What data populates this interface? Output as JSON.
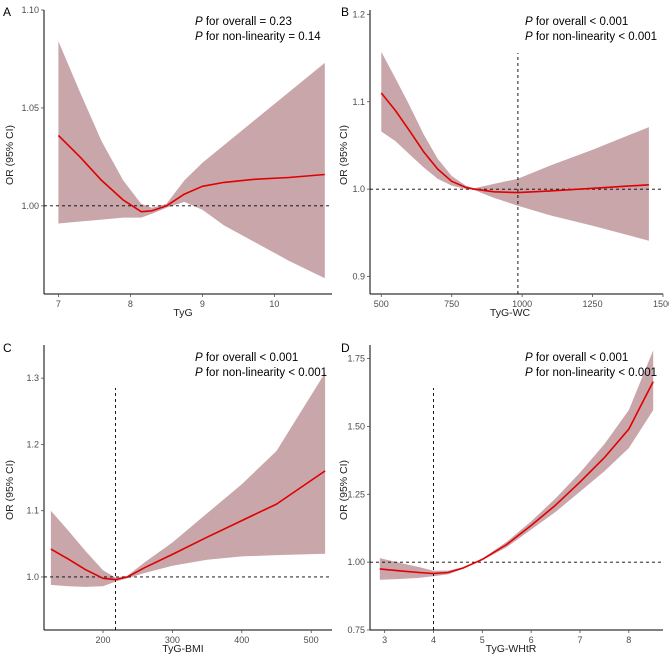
{
  "figure": {
    "ylabel": "OR (95% CI)"
  },
  "chart_data": [
    {
      "panel": "A",
      "type": "line",
      "xlabel": "TyG",
      "ylabel": "OR (95% CI)",
      "xlim": [
        6.8,
        10.8
      ],
      "ylim": [
        0.955,
        1.1
      ],
      "xticks": [
        7,
        8,
        9,
        10
      ],
      "xtick_labels": [
        "7",
        "8",
        "9",
        "10"
      ],
      "yticks": [
        1.0,
        1.05,
        1.1
      ],
      "ytick_labels": [
        "1.00",
        "1.05",
        "1.10"
      ],
      "reference_y": 1.0,
      "reference_x": null,
      "annotation": [
        {
          "p": "P",
          "text": " for overall = 0.23"
        },
        {
          "p": "P",
          "text": " for non-linearity = 0.14"
        }
      ],
      "series": [
        {
          "name": "OR",
          "x": [
            7.0,
            7.3,
            7.6,
            7.9,
            8.15,
            8.3,
            8.5,
            8.75,
            9.0,
            9.3,
            9.7,
            10.2,
            10.7
          ],
          "y": [
            1.036,
            1.025,
            1.013,
            1.003,
            0.997,
            0.9975,
            1.0,
            1.006,
            1.01,
            1.012,
            1.0135,
            1.0145,
            1.016
          ],
          "lower": [
            0.991,
            0.992,
            0.993,
            0.994,
            0.994,
            0.996,
            0.999,
            1.002,
            0.998,
            0.99,
            0.982,
            0.972,
            0.963
          ],
          "upper": [
            1.084,
            1.058,
            1.033,
            1.013,
            1.001,
            0.999,
            1.001,
            1.013,
            1.022,
            1.031,
            1.043,
            1.058,
            1.073
          ]
        }
      ]
    },
    {
      "panel": "B",
      "type": "line",
      "xlabel": "TyG-WC",
      "ylabel": "OR (95% CI)",
      "xlim": [
        460,
        1500
      ],
      "ylim": [
        0.88,
        1.205
      ],
      "xticks": [
        500,
        750,
        1000,
        1250,
        1500
      ],
      "xtick_labels": [
        "500",
        "750",
        "1000",
        "1250",
        "1500"
      ],
      "yticks": [
        0.9,
        1.0,
        1.1,
        1.2
      ],
      "ytick_labels": [
        "0.9",
        "1.0",
        "1.1",
        "1.2"
      ],
      "reference_y": 1.0,
      "reference_x": 985,
      "annotation": [
        {
          "p": "P",
          "text": " for overall < 0.001"
        },
        {
          "p": "P",
          "text": " for non-linearity < 0.001"
        }
      ],
      "series": [
        {
          "name": "OR",
          "x": [
            500,
            550,
            600,
            650,
            700,
            750,
            800,
            830,
            900,
            985,
            1100,
            1250,
            1450
          ],
          "y": [
            1.11,
            1.09,
            1.067,
            1.043,
            1.023,
            1.009,
            1.002,
            1.0,
            0.997,
            0.996,
            0.998,
            1.001,
            1.005
          ],
          "lower": [
            1.066,
            1.055,
            1.04,
            1.025,
            1.012,
            1.004,
            1.0,
            0.999,
            0.99,
            0.981,
            0.97,
            0.958,
            0.941
          ],
          "upper": [
            1.157,
            1.127,
            1.096,
            1.063,
            1.035,
            1.015,
            1.004,
            1.001,
            1.006,
            1.012,
            1.027,
            1.045,
            1.071
          ]
        }
      ]
    },
    {
      "panel": "C",
      "type": "line",
      "xlabel": "TyG-BMI",
      "ylabel": "OR (95% CI)",
      "xlim": [
        115,
        530
      ],
      "ylim": [
        0.92,
        1.35
      ],
      "xticks": [
        200,
        300,
        400,
        500
      ],
      "xtick_labels": [
        "200",
        "300",
        "400",
        "500"
      ],
      "yticks": [
        1.0,
        1.1,
        1.2,
        1.3
      ],
      "ytick_labels": [
        "1.0",
        "1.1",
        "1.2",
        "1.3"
      ],
      "reference_y": 1.0,
      "reference_x": 218,
      "annotation": [
        {
          "p": "P",
          "text": " for overall < 0.001"
        },
        {
          "p": "P",
          "text": " for non-linearity < 0.001"
        }
      ],
      "series": [
        {
          "name": "OR",
          "x": [
            125,
            150,
            175,
            200,
            218,
            235,
            260,
            300,
            350,
            400,
            450,
            520
          ],
          "y": [
            1.042,
            1.027,
            1.011,
            0.998,
            0.996,
            1.0,
            1.014,
            1.034,
            1.06,
            1.085,
            1.11,
            1.16
          ],
          "lower": [
            0.988,
            0.986,
            0.985,
            0.986,
            0.993,
            0.998,
            1.006,
            1.017,
            1.026,
            1.031,
            1.033,
            1.035
          ],
          "upper": [
            1.1,
            1.07,
            1.039,
            1.01,
            0.999,
            1.002,
            1.022,
            1.052,
            1.096,
            1.14,
            1.19,
            1.308
          ]
        }
      ]
    },
    {
      "panel": "D",
      "type": "line",
      "xlabel": "TyG-WHtR",
      "ylabel": "OR (95% CI)",
      "xlim": [
        2.7,
        8.7
      ],
      "ylim": [
        0.75,
        1.8
      ],
      "xticks": [
        3,
        4,
        5,
        6,
        7,
        8
      ],
      "xtick_labels": [
        "3",
        "4",
        "5",
        "6",
        "7",
        "8"
      ],
      "yticks": [
        0.75,
        1.0,
        1.25,
        1.5,
        1.75
      ],
      "ytick_labels": [
        "0.75",
        "1.00",
        "1.25",
        "1.50",
        "1.75"
      ],
      "reference_y": 1.0,
      "reference_x": 4.0,
      "annotation": [
        {
          "p": "P",
          "text": " for overall < 0.001"
        },
        {
          "p": "P",
          "text": " for non-linearity < 0.001"
        }
      ],
      "series": [
        {
          "name": "OR",
          "x": [
            2.9,
            3.3,
            3.7,
            4.0,
            4.3,
            4.6,
            4.85,
            5.0,
            5.5,
            6.0,
            6.5,
            7.0,
            7.5,
            8.0,
            8.5
          ],
          "y": [
            0.975,
            0.968,
            0.962,
            0.958,
            0.962,
            0.978,
            0.998,
            1.01,
            1.065,
            1.135,
            1.21,
            1.295,
            1.385,
            1.49,
            1.665
          ],
          "lower": [
            0.935,
            0.938,
            0.942,
            0.948,
            0.955,
            0.975,
            0.997,
            1.007,
            1.055,
            1.12,
            1.185,
            1.26,
            1.335,
            1.42,
            1.56
          ],
          "upper": [
            1.015,
            0.998,
            0.982,
            0.968,
            0.969,
            0.981,
            0.999,
            1.013,
            1.075,
            1.15,
            1.235,
            1.33,
            1.435,
            1.56,
            1.78
          ]
        }
      ]
    }
  ]
}
